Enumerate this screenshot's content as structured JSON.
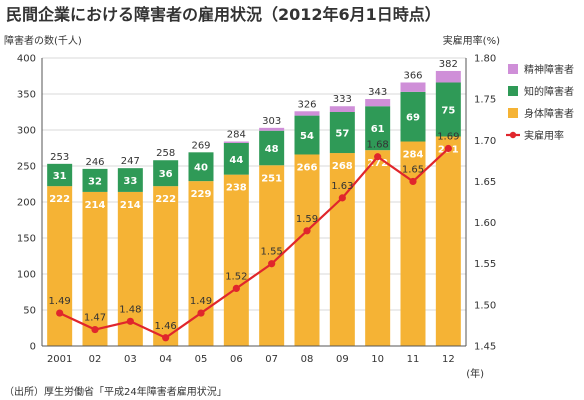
{
  "chart_data": {
    "type": "bar",
    "title": "民間企業における障害者の雇用状況（2012年6月1日時点）",
    "ylabel_left": "障害者の数(千人)",
    "ylabel_right": "実雇用率(%)",
    "x_unit": "(年)",
    "categories": [
      "2001",
      "02",
      "03",
      "04",
      "05",
      "06",
      "07",
      "08",
      "09",
      "10",
      "11",
      "12"
    ],
    "ylim_left": [
      0,
      400
    ],
    "yticks_left": [
      0,
      50,
      100,
      150,
      200,
      250,
      300,
      350,
      400
    ],
    "ylim_right": [
      1.45,
      1.8
    ],
    "yticks_right": [
      "1.45",
      "1.50",
      "1.55",
      "1.60",
      "1.65",
      "1.70",
      "1.75",
      "1.80"
    ],
    "series": [
      {
        "name": "身体障害者",
        "values": [
          222,
          214,
          214,
          222,
          229,
          238,
          251,
          266,
          268,
          272,
          284,
          291
        ]
      },
      {
        "name": "知的障害者",
        "values": [
          31,
          32,
          33,
          36,
          40,
          44,
          48,
          54,
          57,
          61,
          69,
          75
        ]
      },
      {
        "name": "精神障害者",
        "values": [
          0,
          0,
          0,
          0,
          0,
          2,
          4,
          6,
          8,
          10,
          13,
          16
        ]
      }
    ],
    "totals": [
      253,
      246,
      247,
      258,
      269,
      284,
      303,
      326,
      333,
      343,
      366,
      382
    ],
    "rate": {
      "name": "実雇用率",
      "values": [
        1.49,
        1.47,
        1.48,
        1.46,
        1.49,
        1.52,
        1.55,
        1.59,
        1.63,
        1.68,
        1.65,
        1.69
      ],
      "labels": [
        "1.49",
        "1.47",
        "1.48",
        "1.46",
        "1.49",
        "1.52",
        "1.55",
        "1.59",
        "1.63",
        "1.68",
        "1.65",
        "1.69"
      ]
    },
    "legend_placement": "right",
    "colors": {
      "身体障害者": "#f5b335",
      "知的障害者": "#2f9a57",
      "精神障害者": "#cf8fd8",
      "実雇用率": "#e0262c"
    },
    "grid": true
  },
  "source": "（出所）厚生労働省「平成24年障害者雇用状況」"
}
